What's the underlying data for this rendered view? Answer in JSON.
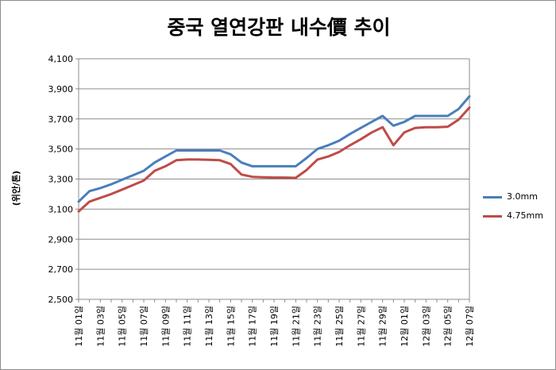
{
  "chart_data": {
    "type": "line",
    "title": "중국 열연강판 내수價 추이",
    "ylabel": "(위안/톤)",
    "xlabel": "",
    "ylim": [
      2500,
      4100
    ],
    "yticks": [
      "4,100",
      "3,900",
      "3,700",
      "3,500",
      "3,300",
      "3,100",
      "2,900",
      "2,700",
      "2,500"
    ],
    "y_gridlines": true,
    "legend_position": "right",
    "categories": [
      "11월 01일",
      "11월 02일",
      "11월 03일",
      "11월 04일",
      "11월 05일",
      "11월 06일",
      "11월 07일",
      "11월 08일",
      "11월 09일",
      "11월 10일",
      "11월 11일",
      "11월 12일",
      "11월 13일",
      "11월 14일",
      "11월 15일",
      "11월 16일",
      "11월 17일",
      "11월 18일",
      "11월 19일",
      "11월 20일",
      "11월 21일",
      "11월 22일",
      "11월 23일",
      "11월 24일",
      "11월 25일",
      "11월 26일",
      "11월 27일",
      "11월 28일",
      "11월 29일",
      "11월 30일",
      "12월 01일",
      "12월 02일",
      "12월 03일",
      "12월 04일",
      "12월 05일",
      "12월 06일",
      "12월 07일"
    ],
    "tick_labels": [
      "11월 01일",
      "11월 03일",
      "11월 05일",
      "11월 07일",
      "11월 09일",
      "11월 11일",
      "11월 13일",
      "11월 15일",
      "11월 17일",
      "11월 19일",
      "11월 21일",
      "11월 23일",
      "11월 25일",
      "11월 27일",
      "11월 29일",
      "12월 01일",
      "12월 03일",
      "12월 05일",
      "12월 07일"
    ],
    "series": [
      {
        "name": "3.0mm",
        "color": "#4a7ebb",
        "values": [
          3150,
          3220,
          3240,
          3265,
          3295,
          3325,
          3355,
          3410,
          3450,
          3490,
          3490,
          3490,
          3490,
          3490,
          3465,
          3410,
          3385,
          3385,
          3385,
          3385,
          3385,
          3440,
          3500,
          3525,
          3555,
          3600,
          3640,
          3680,
          3720,
          3655,
          3680,
          3720,
          3720,
          3720,
          3720,
          3765,
          3850
        ]
      },
      {
        "name": "4.75mm",
        "color": "#be4b48",
        "values": [
          3085,
          3150,
          3175,
          3200,
          3230,
          3260,
          3290,
          3355,
          3385,
          3425,
          3430,
          3430,
          3428,
          3425,
          3400,
          3330,
          3315,
          3312,
          3310,
          3310,
          3308,
          3360,
          3430,
          3450,
          3480,
          3525,
          3565,
          3610,
          3645,
          3525,
          3610,
          3640,
          3645,
          3645,
          3648,
          3695,
          3775
        ]
      }
    ]
  }
}
